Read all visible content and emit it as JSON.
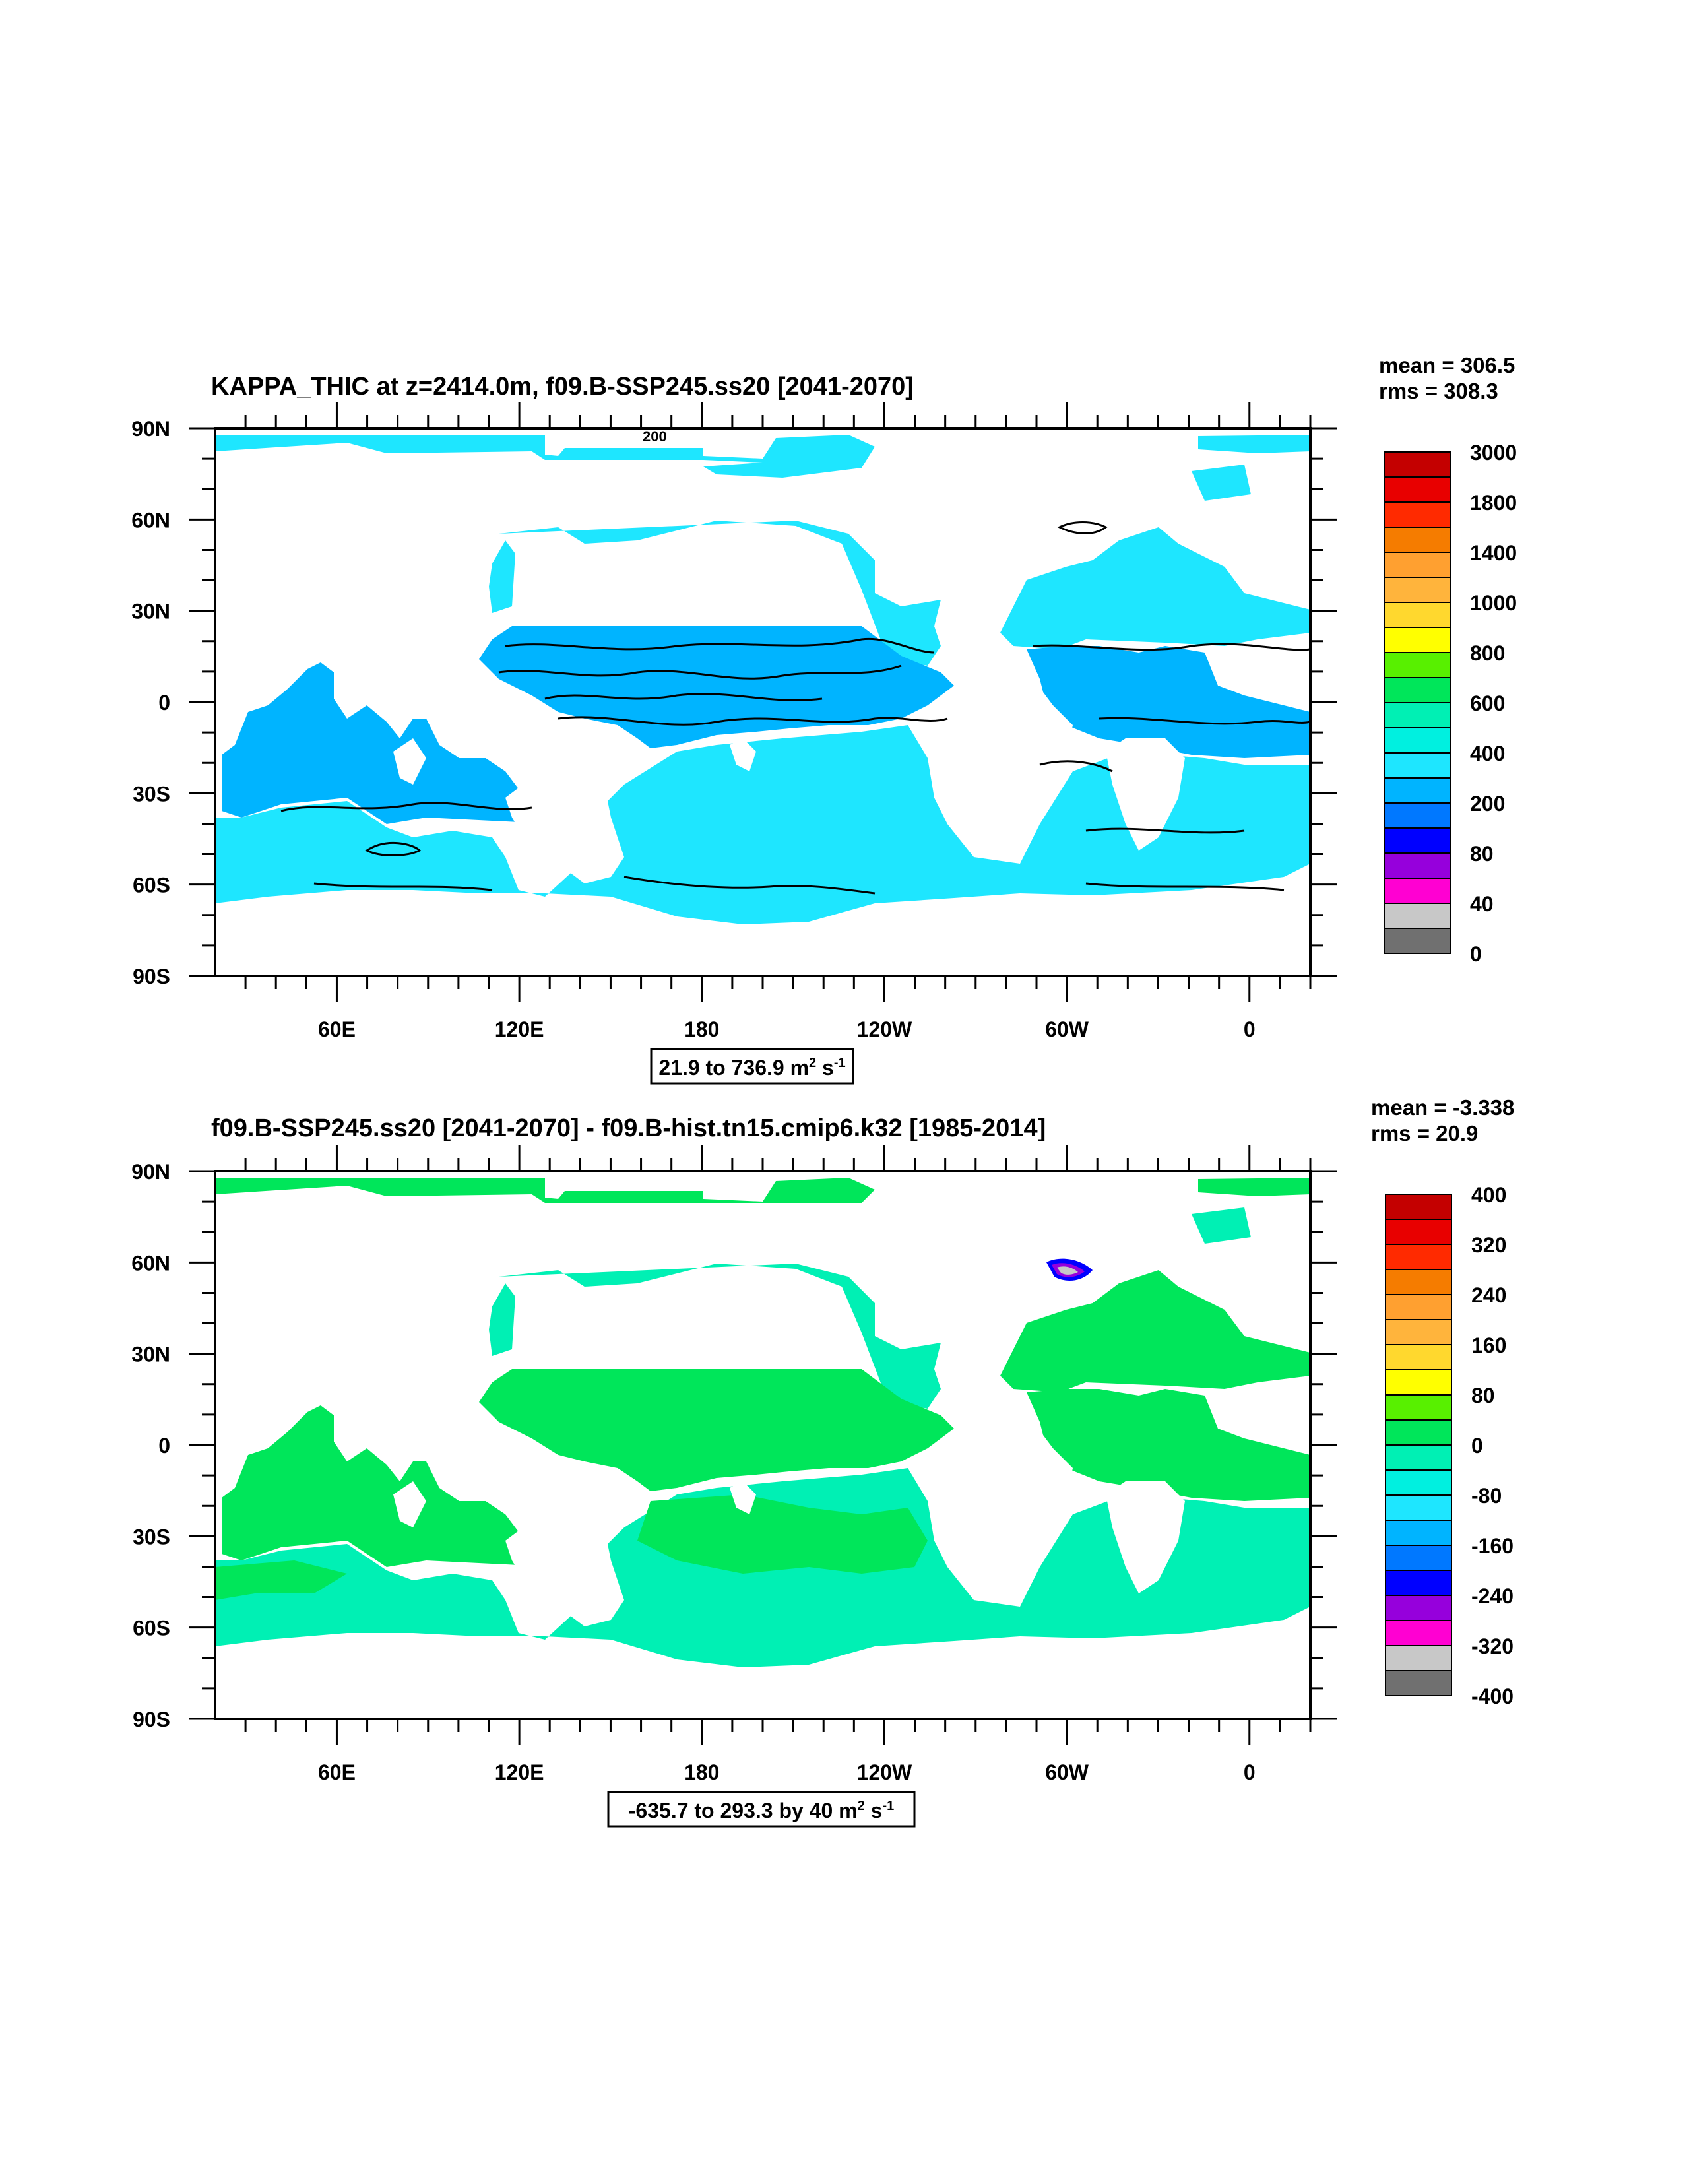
{
  "panels": [
    {
      "title": "KAPPA_THIC at z=2414.0m, f09.B-SSP245.ss20 [2041-2070]",
      "stats": {
        "mean": "mean = 306.5",
        "rms": "rms = 308.3"
      },
      "range_label": {
        "text": "21.9 to 736.9 m",
        "sup1": "2",
        "mid": " s",
        "sup2": "-1"
      },
      "contour_label": "200",
      "colorbar": {
        "labels": [
          "3000",
          "1800",
          "1400",
          "1000",
          "800",
          "600",
          "400",
          "200",
          "80",
          "40",
          "0"
        ],
        "colors": [
          "#c40000",
          "#e80000",
          "#ff2a00",
          "#f57c00",
          "#ffa030",
          "#ffb43c",
          "#ffd82e",
          "#ffff00",
          "#58f000",
          "#00e65a",
          "#00f0b4",
          "#00f0e0",
          "#1ee6ff",
          "#00b4ff",
          "#0078ff",
          "#0000ff",
          "#9600dc",
          "#ff00d2",
          "#c8c8c8",
          "#707070"
        ]
      },
      "ocean_colors": {
        "north": "#1ee6ff",
        "tropics": "#00b4ff",
        "south": "#1ee6ff"
      }
    },
    {
      "title": "f09.B-SSP245.ss20 [2041-2070] - f09.B-hist.tn15.cmip6.k32 [1985-2014]",
      "stats": {
        "mean": "mean = -3.338",
        "rms": "rms = 20.9"
      },
      "range_label": {
        "text": "-635.7 to 293.3 by 40 m",
        "sup1": "2",
        "mid": " s",
        "sup2": "-1"
      },
      "colorbar": {
        "labels": [
          "400",
          "320",
          "240",
          "160",
          "80",
          "0",
          "-80",
          "-160",
          "-240",
          "-320",
          "-400"
        ],
        "colors": [
          "#c40000",
          "#e80000",
          "#ff2a00",
          "#f57c00",
          "#ffa030",
          "#ffb43c",
          "#ffd82e",
          "#ffff00",
          "#58f000",
          "#00e65a",
          "#00f0b4",
          "#00f0e0",
          "#1ee6ff",
          "#00b4ff",
          "#0078ff",
          "#0000ff",
          "#9600dc",
          "#ff00d2",
          "#c8c8c8",
          "#707070"
        ]
      },
      "ocean_colors": {
        "north": "#00f0b4",
        "tropics": "#00e65a",
        "south": "#00f0b4"
      }
    }
  ],
  "map_axes": {
    "lat_labels": [
      "90N",
      "60N",
      "30N",
      "0",
      "30S",
      "60S",
      "90S"
    ],
    "lon_labels": [
      "60E",
      "120E",
      "180",
      "120W",
      "60W",
      "0"
    ]
  }
}
